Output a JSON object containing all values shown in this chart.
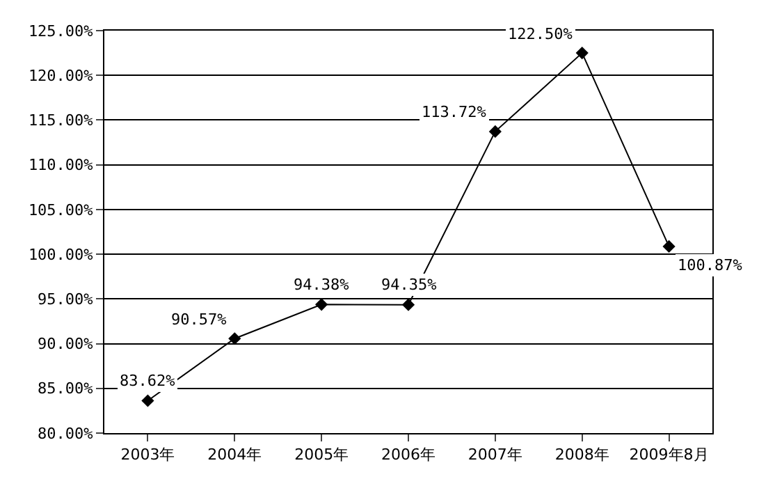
{
  "chart_data": {
    "type": "line",
    "categories": [
      "2003年",
      "2004年",
      "2005年",
      "2006年",
      "2007年",
      "2008年",
      "2009年8月"
    ],
    "series": [
      {
        "color": "#000000",
        "values": [
          83.62,
          90.57,
          94.38,
          94.35,
          113.72,
          122.5,
          100.87
        ],
        "value_labels": [
          "83.62%",
          "90.57%",
          "94.38%",
          "94.35%",
          "113.72%",
          "122.50%",
          "100.87%"
        ]
      }
    ],
    "ylim": [
      80,
      125
    ],
    "yticks": [
      {
        "value": 80,
        "label": "80.00%"
      },
      {
        "value": 85,
        "label": "85.00%"
      },
      {
        "value": 90,
        "label": "90.00%"
      },
      {
        "value": 95,
        "label": "95.00%"
      },
      {
        "value": 100,
        "label": "100.00%"
      },
      {
        "value": 105,
        "label": "105.00%"
      },
      {
        "value": 110,
        "label": "110.00%"
      },
      {
        "value": 115,
        "label": "115.00%"
      },
      {
        "value": 120,
        "label": "120.00%"
      },
      {
        "value": 125,
        "label": "125.00%"
      }
    ],
    "grid": "y",
    "marker": "diamond",
    "line_style": "solid",
    "legend": false
  }
}
